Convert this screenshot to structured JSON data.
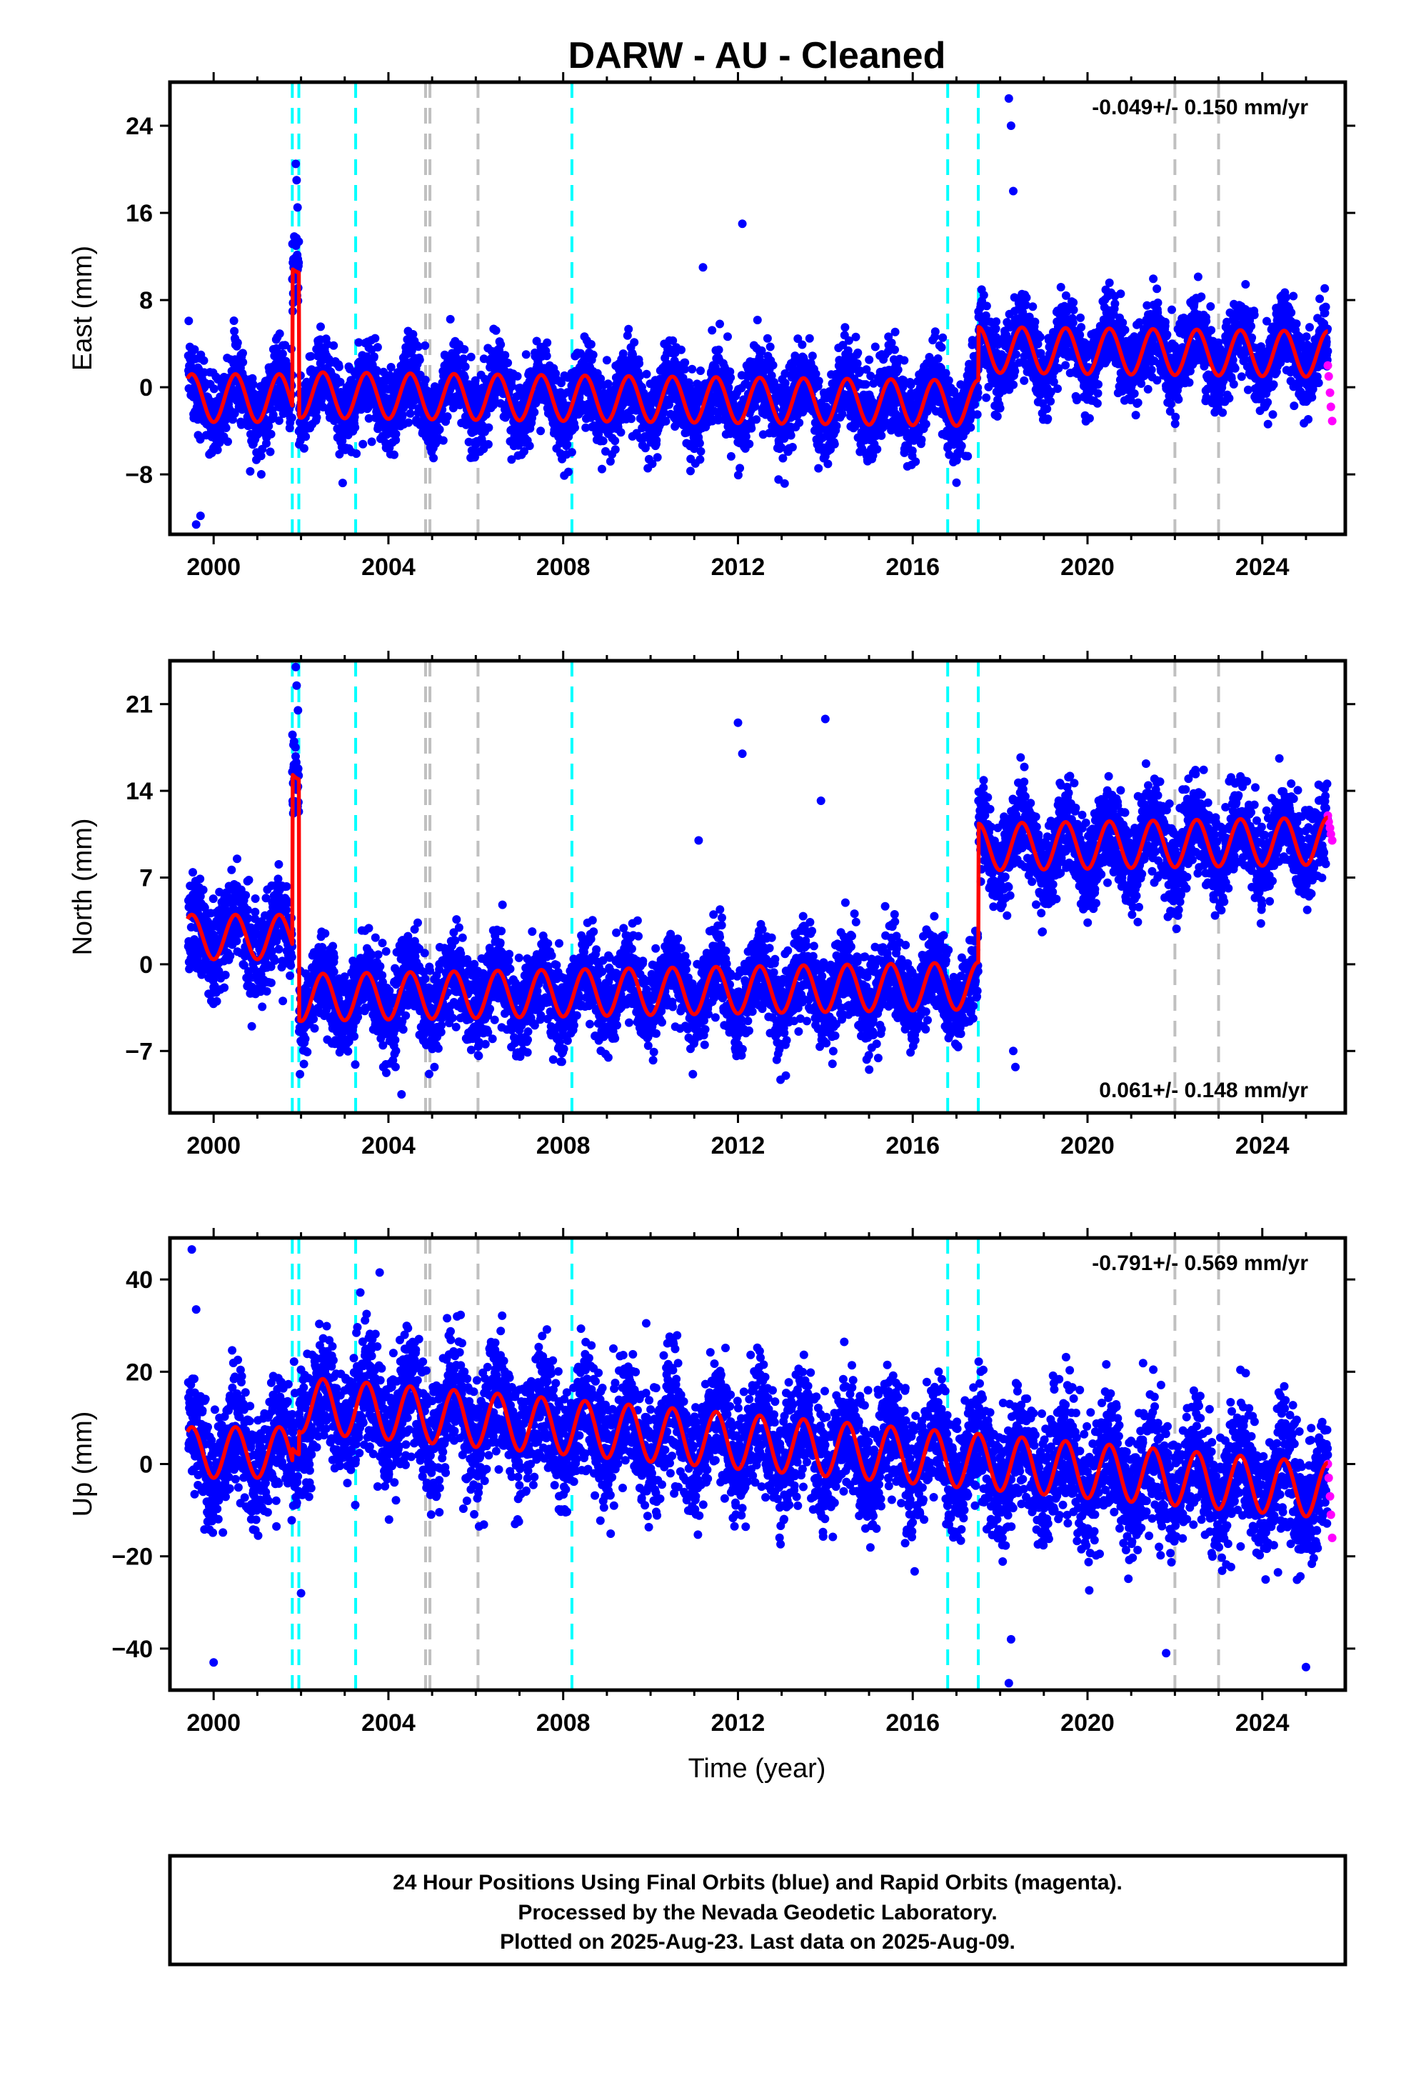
{
  "title": "DARW  - AU - Cleaned",
  "xlabel": "Time (year)",
  "footer": {
    "line1": "24 Hour Positions Using Final Orbits (blue) and Rapid Orbits (magenta).",
    "line2": "Processed by the Nevada Geodetic Laboratory.",
    "line3": "Plotted on 2025-Aug-23. Last data on 2025-Aug-09."
  },
  "colors": {
    "final_orbits": "#0000ff",
    "rapid_orbits": "#ff00ff",
    "model": "#ff0000",
    "equipment_change": "#00ffff",
    "other_event": "#c0c0c0"
  },
  "chart_data": [
    {
      "type": "scatter",
      "component": "East",
      "ylabel": "East (mm)",
      "xlim": [
        1999.0,
        2025.9
      ],
      "ylim": [
        -13.5,
        28.0
      ],
      "xticks": [
        "2000",
        "2004",
        "2008",
        "2012",
        "2016",
        "2020",
        "2024"
      ],
      "yticks": [
        "-8",
        "0",
        "8",
        "16",
        "24"
      ],
      "rate_label": "-0.049+/- 0.150 mm/yr",
      "rate_position": "top-right",
      "event_lines_cyan": [
        2001.8,
        2001.95,
        2003.25,
        2008.2,
        2016.8,
        2017.5
      ],
      "event_lines_gray": [
        2004.85,
        2004.95,
        2006.05,
        2022.0,
        2023.0
      ],
      "model": {
        "segments": [
          {
            "t0": 1999.4,
            "t1": 2001.8,
            "offset": -1.0,
            "amplitude": 2.2,
            "trend": 0.0
          },
          {
            "t0": 2001.8,
            "t1": 2001.95,
            "offset": 11.0,
            "amplitude": 0.5,
            "trend": 0.0
          },
          {
            "t0": 2001.95,
            "t1": 2017.5,
            "offset": -1.1,
            "amplitude": 2.1,
            "trend": -0.049
          },
          {
            "t0": 2017.5,
            "t1": 2025.5,
            "offset": 3.8,
            "amplitude": 2.1,
            "trend": -0.049
          }
        ]
      },
      "rapid_points": {
        "x": [
          2025.5,
          2025.52,
          2025.55,
          2025.57,
          2025.6
        ],
        "y": [
          2.0,
          1.0,
          -0.5,
          -1.8,
          -3.1
        ]
      },
      "outliers": {
        "x": [
          2001.88,
          2001.9,
          2001.92,
          2018.2,
          2018.25,
          2018.3,
          2012.1,
          2011.2,
          1999.6,
          1999.7
        ],
        "y": [
          20.5,
          19.0,
          16.5,
          26.5,
          24.0,
          18.0,
          15.0,
          11.0,
          -12.6,
          -11.8
        ]
      }
    },
    {
      "type": "scatter",
      "component": "North",
      "ylabel": "North (mm)",
      "xlim": [
        1999.0,
        2025.9
      ],
      "ylim": [
        -12.0,
        24.5
      ],
      "xticks": [
        "2000",
        "2004",
        "2008",
        "2012",
        "2016",
        "2020",
        "2024"
      ],
      "yticks": [
        "-7",
        "0",
        "7",
        "14",
        "21"
      ],
      "rate_label": "0.061+/- 0.148 mm/yr",
      "rate_position": "bottom-right",
      "event_lines_cyan": [
        2001.8,
        2001.95,
        2003.25,
        2008.2,
        2016.8,
        2017.5
      ],
      "event_lines_gray": [
        2004.85,
        2004.95,
        2006.05,
        2022.0,
        2023.0
      ],
      "model": {
        "segments": [
          {
            "t0": 1999.4,
            "t1": 2001.8,
            "offset": 2.2,
            "amplitude": 1.8,
            "trend": 0.0
          },
          {
            "t0": 2001.8,
            "t1": 2001.95,
            "offset": 15.5,
            "amplitude": 0.6,
            "trend": 0.0
          },
          {
            "t0": 2001.95,
            "t1": 2017.5,
            "offset": -2.2,
            "amplitude": 1.9,
            "trend": 0.061
          },
          {
            "t0": 2017.5,
            "t1": 2025.5,
            "offset": 9.0,
            "amplitude": 1.9,
            "trend": 0.061
          }
        ]
      },
      "rapid_points": {
        "x": [
          2025.5,
          2025.52,
          2025.55,
          2025.57,
          2025.6
        ],
        "y": [
          12.0,
          11.5,
          11.0,
          10.5,
          10.0
        ]
      },
      "outliers": {
        "x": [
          2001.88,
          2001.9,
          2001.93,
          2012.0,
          2012.1,
          2014.0,
          2013.9,
          2011.1,
          2018.3,
          2018.35,
          2004.3
        ],
        "y": [
          24.0,
          22.5,
          20.5,
          19.5,
          17.0,
          19.8,
          13.2,
          10.0,
          -7.0,
          -8.3,
          -10.5
        ]
      }
    },
    {
      "type": "scatter",
      "component": "Up",
      "ylabel": "Up (mm)",
      "xlim": [
        1999.0,
        2025.9
      ],
      "ylim": [
        -49.0,
        49.0
      ],
      "xticks": [
        "2000",
        "2004",
        "2008",
        "2012",
        "2016",
        "2020",
        "2024"
      ],
      "yticks": [
        "-40",
        "-20",
        "0",
        "20",
        "40"
      ],
      "rate_label": "-0.791+/- 0.569 mm/yr",
      "rate_position": "top-right",
      "event_lines_cyan": [
        2001.8,
        2001.95,
        2003.25,
        2008.2,
        2016.8,
        2017.5
      ],
      "event_lines_gray": [
        2004.85,
        2004.95,
        2006.05,
        2022.0,
        2023.0
      ],
      "model": {
        "segments": [
          {
            "t0": 1999.4,
            "t1": 2001.8,
            "offset": 2.5,
            "amplitude": 5.5,
            "trend": 0.0
          },
          {
            "t0": 2001.8,
            "t1": 2001.95,
            "offset": 4.0,
            "amplitude": 2.0,
            "trend": 0.0
          },
          {
            "t0": 2001.95,
            "t1": 2025.5,
            "offset": 6.5,
            "amplitude": 6.0,
            "trend": -0.791
          }
        ]
      },
      "rapid_points": {
        "x": [
          2025.5,
          2025.52,
          2025.55,
          2025.57,
          2025.6
        ],
        "y": [
          0.0,
          -3.0,
          -7.0,
          -11.0,
          -16.0
        ]
      },
      "outliers": {
        "x": [
          1999.5,
          1999.6,
          2000.0,
          2003.8,
          2018.2,
          2018.25,
          2009.9,
          2021.8,
          2025.0,
          2002.0
        ],
        "y": [
          46.5,
          33.5,
          -43.0,
          41.5,
          -47.5,
          -38.0,
          30.5,
          -41.0,
          -44.0,
          -28.0
        ]
      }
    }
  ]
}
